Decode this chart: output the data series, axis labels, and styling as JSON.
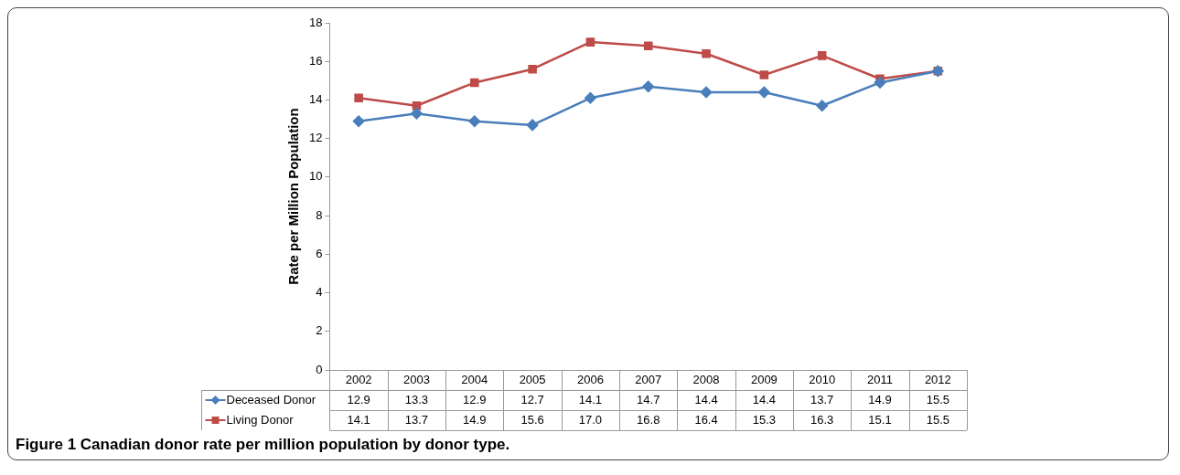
{
  "chart_data": {
    "type": "line",
    "title": "Figure 1 Canadian donor rate per million population by donor type.",
    "ylabel": "Rate per Million Population",
    "categories": [
      "2002",
      "2003",
      "2004",
      "2005",
      "2006",
      "2007",
      "2008",
      "2009",
      "2010",
      "2011",
      "2012"
    ],
    "series": [
      {
        "name": "Deceased Donor",
        "color": "#4a7ebb",
        "marker": "diamond",
        "values": [
          12.9,
          13.3,
          12.9,
          12.7,
          14.1,
          14.7,
          14.4,
          14.4,
          13.7,
          14.9,
          15.5
        ],
        "value_labels": [
          "12.9",
          "13.3",
          "12.9",
          "12.7",
          "14.1",
          "14.7",
          "14.4",
          "14.4",
          "13.7",
          "14.9",
          "15.5"
        ]
      },
      {
        "name": "Living Donor",
        "color": "#be4b48",
        "marker": "square",
        "values": [
          14.1,
          13.7,
          14.9,
          15.6,
          17.0,
          16.8,
          16.4,
          15.3,
          16.3,
          15.1,
          15.5
        ],
        "value_labels": [
          "14.1",
          "13.7",
          "14.9",
          "15.6",
          "17.0",
          "16.8",
          "16.4",
          "15.3",
          "16.3",
          "15.1",
          "15.5"
        ]
      }
    ],
    "ylim": [
      0,
      18
    ],
    "yticks": [
      0,
      2,
      4,
      6,
      8,
      10,
      12,
      14,
      16,
      18
    ],
    "grid": false,
    "legend": "bottom",
    "line_style": "solid"
  }
}
